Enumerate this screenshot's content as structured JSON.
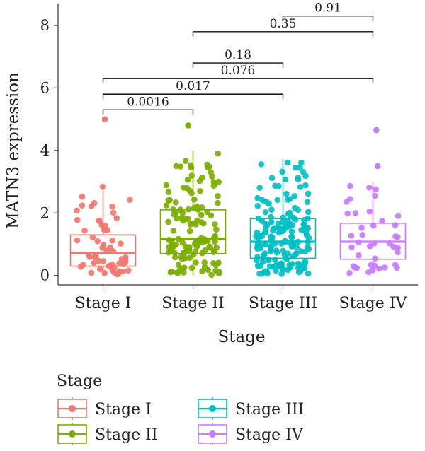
{
  "chart_data": {
    "type": "box",
    "xlabel": "Stage",
    "ylabel": "MATN3 expression",
    "ylim": [
      -0.3,
      8.7
    ],
    "yticks": [
      0,
      2,
      4,
      6,
      8
    ],
    "categories": [
      "Stage I",
      "Stage II",
      "Stage III",
      "Stage IV"
    ],
    "colors": [
      "#F0766E",
      "#7CAE00",
      "#00BFC4",
      "#C77CFF"
    ],
    "boxes": [
      {
        "q1": 0.3,
        "median": 0.72,
        "q3": 1.3,
        "whisker_low": 0.0,
        "whisker_high": 2.85
      },
      {
        "q1": 0.7,
        "median": 1.18,
        "q3": 2.1,
        "whisker_low": 0.0,
        "whisker_high": 4.0
      },
      {
        "q1": 0.55,
        "median": 1.08,
        "q3": 1.82,
        "whisker_low": 0.05,
        "whisker_high": 3.72
      },
      {
        "q1": 0.52,
        "median": 1.08,
        "q3": 1.67,
        "whisker_low": 0.05,
        "whisker_high": 3.0
      }
    ],
    "outliers": [
      {
        "category": "Stage I",
        "value": 5.0
      },
      {
        "category": "Stage II",
        "value": 4.8
      },
      {
        "category": "Stage IV",
        "value": 3.5
      },
      {
        "category": "Stage IV",
        "value": 4.65
      }
    ],
    "comparisons": [
      {
        "from": "Stage I",
        "to": "Stage II",
        "y": 5.3,
        "label": "0.0016"
      },
      {
        "from": "Stage I",
        "to": "Stage III",
        "y": 5.8,
        "label": "0.017"
      },
      {
        "from": "Stage I",
        "to": "Stage IV",
        "y": 6.3,
        "label": "0.076"
      },
      {
        "from": "Stage II",
        "to": "Stage III",
        "y": 6.8,
        "label": "0.18"
      },
      {
        "from": "Stage II",
        "to": "Stage IV",
        "y": 7.8,
        "label": "0.35"
      },
      {
        "from": "Stage III",
        "to": "Stage IV",
        "y": 8.3,
        "label": "0.91"
      }
    ],
    "point_counts": [
      55,
      130,
      170,
      40
    ],
    "legend": {
      "title": "Stage",
      "position": "bottom",
      "entries": [
        "Stage I",
        "Stage II",
        "Stage III",
        "Stage IV"
      ]
    },
    "grid": false
  }
}
